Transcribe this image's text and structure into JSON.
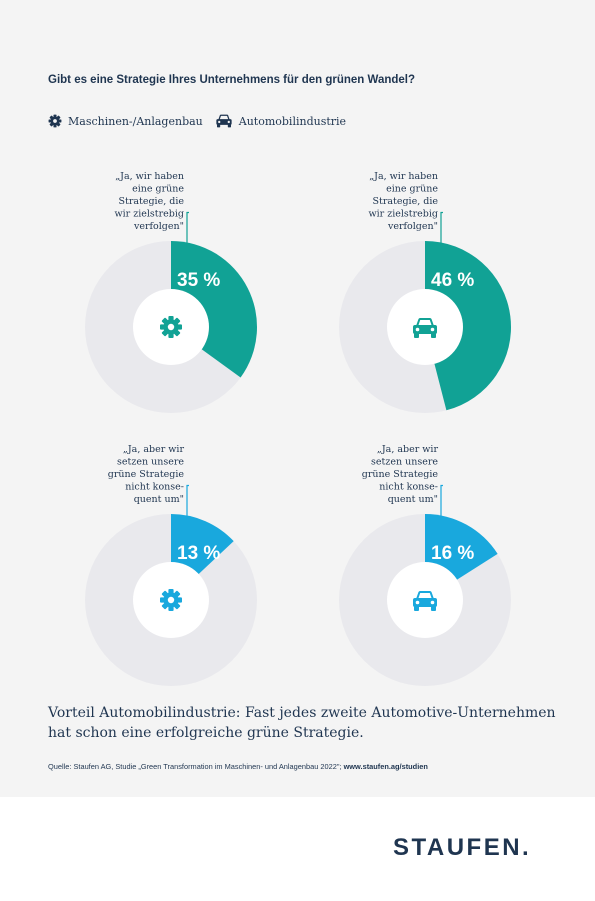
{
  "question": "Gibt es eine Strategie Ihres Unternehmens für den grünen Wandel?",
  "legend": [
    {
      "label": "Maschinen-/Anlagenbau",
      "icon": "gear-icon"
    },
    {
      "label": "Automobilindustrie",
      "icon": "car-icon"
    }
  ],
  "colors": {
    "teal": "#11a295",
    "blue": "#19a8dd",
    "ring": "#e9e9ed",
    "text": "#1f3550",
    "background": "#f4f4f4"
  },
  "chart_data": [
    {
      "type": "pie",
      "donut": true,
      "label": "„Ja, wir haben eine grüne Strategie, die wir zielstrebig verfolgen\"",
      "label_lines": [
        "„Ja, wir haben",
        "eine grüne",
        "Strategie, die",
        "wir zielstrebig",
        "verfolgen\""
      ],
      "segment": "Maschinen-/Anlagenbau",
      "icon": "gear-icon",
      "value": 35,
      "value_label": "35 %",
      "color": "#11a295"
    },
    {
      "type": "pie",
      "donut": true,
      "label": "„Ja, wir haben eine grüne Strategie, die wir zielstrebig verfolgen\"",
      "label_lines": [
        "„Ja, wir haben",
        "eine grüne",
        "Strategie, die",
        "wir zielstrebig",
        "verfolgen\""
      ],
      "segment": "Automobilindustrie",
      "icon": "car-icon",
      "value": 46,
      "value_label": "46 %",
      "color": "#11a295"
    },
    {
      "type": "pie",
      "donut": true,
      "label": "„Ja, aber wir setzen unsere grüne Strategie nicht konse-quent um\"",
      "label_lines": [
        "„Ja, aber wir",
        "setzen unsere",
        "grüne Strategie",
        "nicht konse-",
        "quent um\""
      ],
      "segment": "Maschinen-/Anlagenbau",
      "icon": "gear-icon",
      "value": 13,
      "value_label": "13 %",
      "color": "#19a8dd"
    },
    {
      "type": "pie",
      "donut": true,
      "label": "„Ja, aber wir setzen unsere grüne Strategie nicht konse-quent um\"",
      "label_lines": [
        "„Ja, aber wir",
        "setzen unsere",
        "grüne Strategie",
        "nicht konse-",
        "quent um\""
      ],
      "segment": "Automobilindustrie",
      "icon": "car-icon",
      "value": 16,
      "value_label": "16 %",
      "color": "#19a8dd"
    }
  ],
  "conclusion": "Vorteil Automobilindustrie: Fast jedes zweite Automotive-Unternehmen hat schon eine erfolgreiche grüne Strategie.",
  "source": {
    "text": "Quelle: Staufen AG, Studie „Green Transformation im Maschinen- und Anlagenbau 2022\";",
    "link": "www.staufen.ag/studien"
  },
  "logo": "STAUFEN."
}
